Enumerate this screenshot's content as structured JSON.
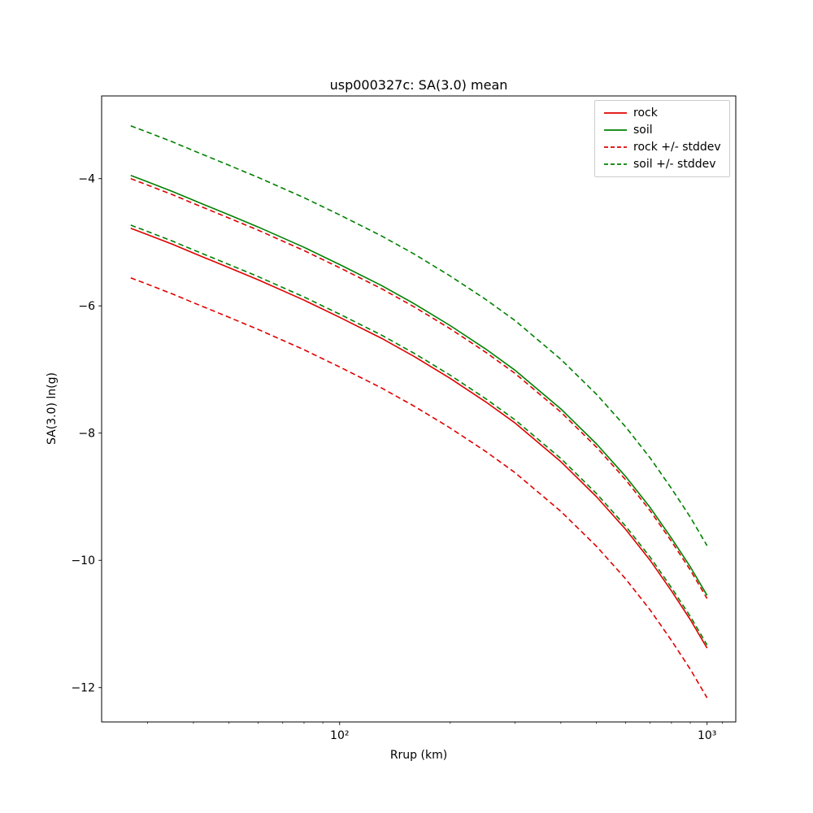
{
  "chart_data": {
    "type": "line",
    "title": "usp000327c: SA(3.0) mean",
    "xlabel": "Rrup (km)",
    "ylabel": "SA(3.0) ln(g)",
    "x_scale": "log",
    "grid": false,
    "legend_position": "upper right",
    "xlim": [
      22.5,
      1197
    ],
    "ylim": [
      -12.54,
      -2.7
    ],
    "x_ticks_major": [
      {
        "value": 100,
        "label": "10²"
      },
      {
        "value": 1000,
        "label": "10³"
      }
    ],
    "x_ticks_minor": [
      30,
      40,
      50,
      60,
      70,
      80,
      90,
      200,
      300,
      400,
      500,
      600,
      700,
      800,
      900,
      1100
    ],
    "y_ticks": [
      {
        "value": -4,
        "label": "−4"
      },
      {
        "value": -6,
        "label": "−6"
      },
      {
        "value": -8,
        "label": "−8"
      },
      {
        "value": -10,
        "label": "−10"
      },
      {
        "value": -12,
        "label": "−12"
      }
    ],
    "x": [
      27,
      30,
      35,
      40,
      50,
      60,
      80,
      100,
      130,
      160,
      200,
      250,
      300,
      400,
      500,
      600,
      700,
      800,
      900,
      1000
    ],
    "series": [
      {
        "name": "rock",
        "color": "#e00000",
        "style": "solid",
        "values": [
          -4.78,
          -4.88,
          -5.03,
          -5.17,
          -5.4,
          -5.59,
          -5.91,
          -6.18,
          -6.51,
          -6.8,
          -7.14,
          -7.51,
          -7.84,
          -8.45,
          -9.0,
          -9.51,
          -10.0,
          -10.48,
          -10.93,
          -11.38
        ]
      },
      {
        "name": "soil",
        "color": "#008000",
        "style": "solid",
        "values": [
          -3.95,
          -4.05,
          -4.2,
          -4.34,
          -4.57,
          -4.76,
          -5.08,
          -5.35,
          -5.68,
          -5.97,
          -6.31,
          -6.68,
          -7.01,
          -7.62,
          -8.17,
          -8.68,
          -9.17,
          -9.65,
          -10.1,
          -10.55
        ]
      },
      {
        "name": "rock +/- stddev",
        "color": "#e00000",
        "style": "dashed",
        "upper": [
          -4.0,
          -4.1,
          -4.25,
          -4.39,
          -4.62,
          -4.81,
          -5.13,
          -5.4,
          -5.73,
          -6.02,
          -6.36,
          -6.73,
          -7.06,
          -7.67,
          -8.22,
          -8.73,
          -9.22,
          -9.7,
          -10.15,
          -10.6
        ],
        "lower": [
          -5.56,
          -5.66,
          -5.81,
          -5.95,
          -6.18,
          -6.37,
          -6.69,
          -6.96,
          -7.29,
          -7.58,
          -7.92,
          -8.29,
          -8.62,
          -9.23,
          -9.78,
          -10.29,
          -10.78,
          -11.26,
          -11.71,
          -12.16
        ]
      },
      {
        "name": "soil +/- stddev",
        "color": "#008000",
        "style": "dashed",
        "upper": [
          -3.17,
          -3.27,
          -3.42,
          -3.56,
          -3.79,
          -3.98,
          -4.3,
          -4.57,
          -4.9,
          -5.19,
          -5.53,
          -5.9,
          -6.23,
          -6.84,
          -7.39,
          -7.9,
          -8.39,
          -8.87,
          -9.32,
          -9.77
        ],
        "lower": [
          -4.73,
          -4.83,
          -4.98,
          -5.12,
          -5.35,
          -5.54,
          -5.86,
          -6.13,
          -6.46,
          -6.75,
          -7.09,
          -7.46,
          -7.79,
          -8.4,
          -8.95,
          -9.46,
          -9.95,
          -10.43,
          -10.88,
          -11.33
        ]
      }
    ]
  }
}
